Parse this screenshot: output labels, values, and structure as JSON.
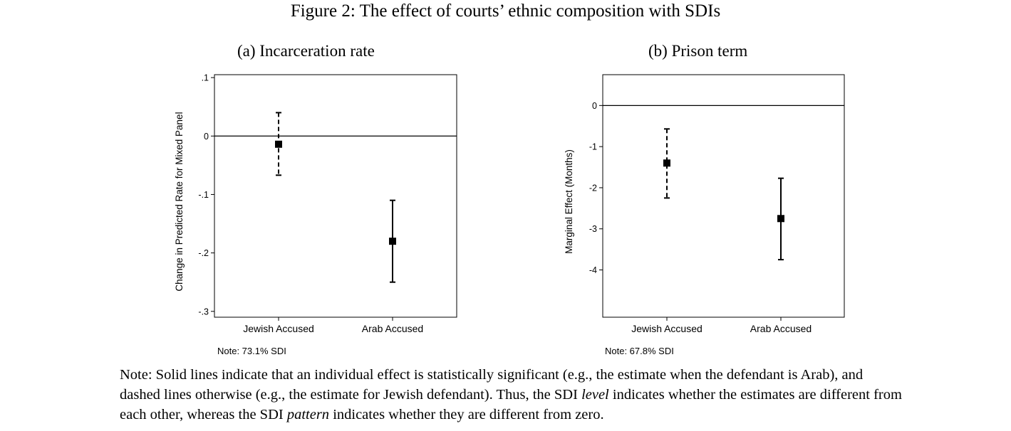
{
  "figure_title": "Figure 2: The effect of courts’ ethnic composition with SDIs",
  "panels": [
    {
      "title": "(a) Incarceration rate",
      "note": "Note: 73.1% SDI"
    },
    {
      "title": "(b) Prison term",
      "note": "Note: 67.8% SDI"
    }
  ],
  "caption": {
    "part1": "Note: Solid lines indicate that an individual effect is statistically significant (e.g., the estimate when the defendant is Arab), and dashed lines otherwise (e.g., the estimate for Jewish defendant). Thus, the SDI ",
    "level": "level",
    "part2": " indicates whether the estimates are different from each other, whereas the SDI ",
    "pattern": "pattern",
    "part3": " indicates whether they are different from zero."
  },
  "chart_data": [
    {
      "type": "scatter",
      "subtype": "point-with-error-bars",
      "title": "(a) Incarceration rate",
      "xlabel": "",
      "ylabel": "Change in Predicted Rate for Mixed Panel",
      "categories": [
        "Jewish Accused",
        "Arab Accused"
      ],
      "estimates": [
        -0.014,
        -0.18
      ],
      "lower": [
        -0.067,
        -0.25
      ],
      "upper": [
        0.04,
        -0.11
      ],
      "line_style": [
        "dashed",
        "solid"
      ],
      "yticks": [
        0.1,
        0,
        -0.1,
        -0.2,
        -0.3
      ],
      "ytick_labels": [
        ".1",
        "0",
        "-.1",
        "-.2",
        "-.3"
      ],
      "ylim": [
        -0.31,
        0.105
      ],
      "reference_line": 0,
      "grid": false,
      "note": "Note: 73.1% SDI"
    },
    {
      "type": "scatter",
      "subtype": "point-with-error-bars",
      "title": "(b) Prison term",
      "xlabel": "",
      "ylabel": "Marginal Effect (Months)",
      "categories": [
        "Jewish Accused",
        "Arab Accused"
      ],
      "estimates": [
        -1.4,
        -2.75
      ],
      "lower": [
        -2.25,
        -3.75
      ],
      "upper": [
        -0.57,
        -1.77
      ],
      "line_style": [
        "dashed",
        "solid"
      ],
      "yticks": [
        0,
        -1,
        -2,
        -3,
        -4
      ],
      "ytick_labels": [
        "0",
        "-1",
        "-2",
        "-3",
        "-4"
      ],
      "ylim": [
        -5.15,
        0.75
      ],
      "reference_line": 0,
      "grid": false,
      "note": "Note: 67.8% SDI"
    }
  ]
}
